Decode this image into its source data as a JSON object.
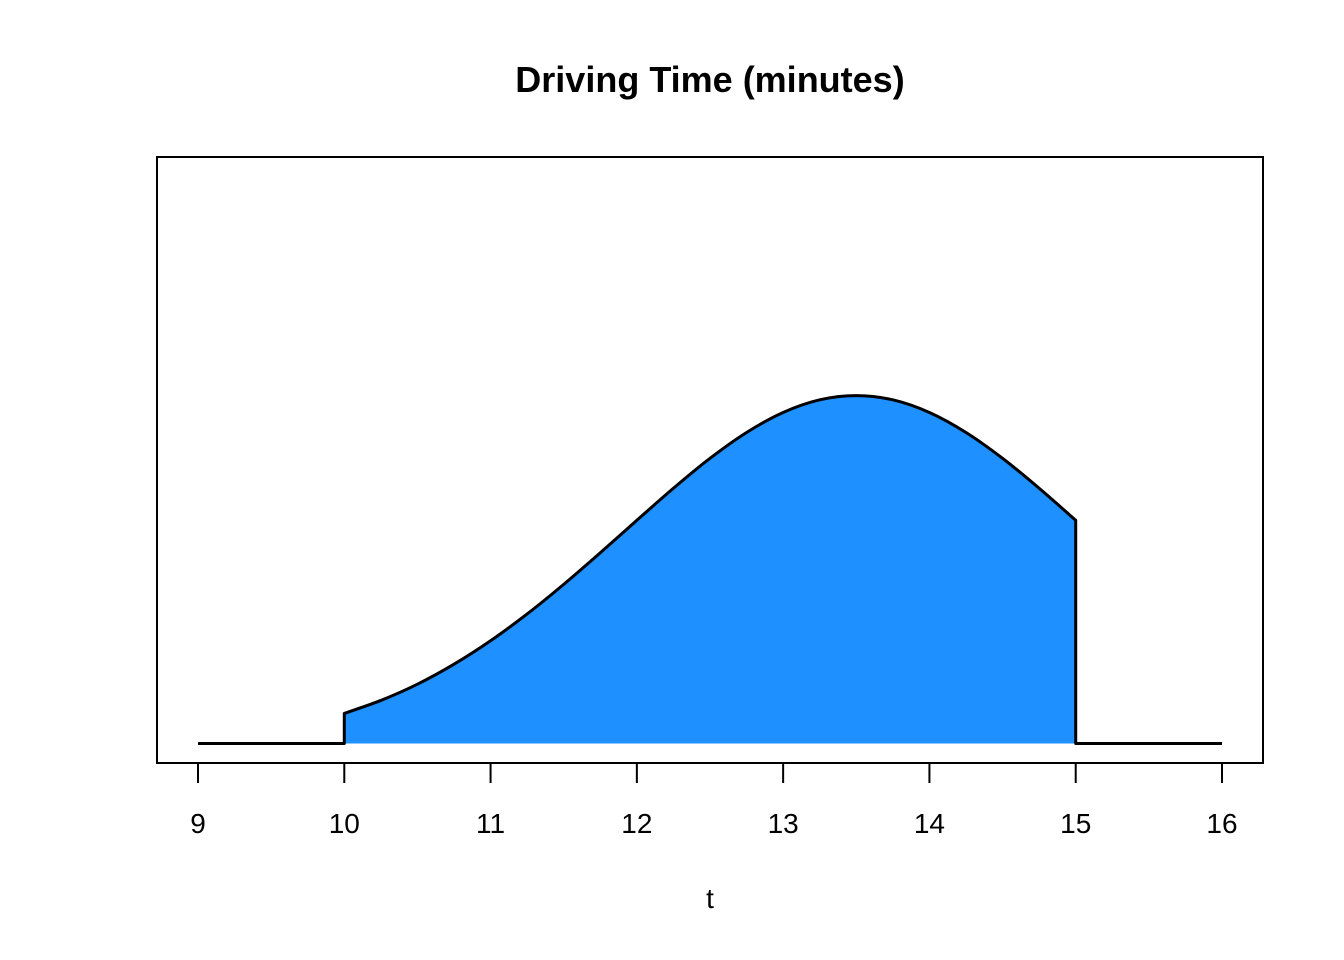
{
  "chart_data": {
    "type": "area",
    "title": "Driving Time (minutes)",
    "xlabel": "t",
    "ylabel": "",
    "xlim": [
      9,
      16
    ],
    "ylim": [
      -0.013,
      0.39
    ],
    "x_ticks": [
      "9",
      "10",
      "11",
      "12",
      "13",
      "14",
      "15",
      "16"
    ],
    "y_axis_shown": false,
    "grid": false,
    "fill_color": "#1E90FF",
    "line_color": "#000000",
    "series": [
      {
        "x": [
          9,
          10,
          10,
          10.25,
          10.5,
          10.75,
          11,
          11.25,
          11.5,
          11.75,
          12,
          12.25,
          12.5,
          12.75,
          13,
          13.25,
          13.5,
          13.75,
          14,
          14.25,
          14.5,
          14.75,
          15,
          15,
          16
        ],
        "y": [
          0,
          0,
          0.02,
          0.0286,
          0.0394,
          0.0527,
          0.0683,
          0.0861,
          0.1058,
          0.1268,
          0.1484,
          0.1697,
          0.1896,
          0.2068,
          0.2201,
          0.2285,
          0.2313,
          0.2285,
          0.2201,
          0.2068,
          0.1896,
          0.1697,
          0.1484,
          0,
          0
        ]
      }
    ]
  }
}
